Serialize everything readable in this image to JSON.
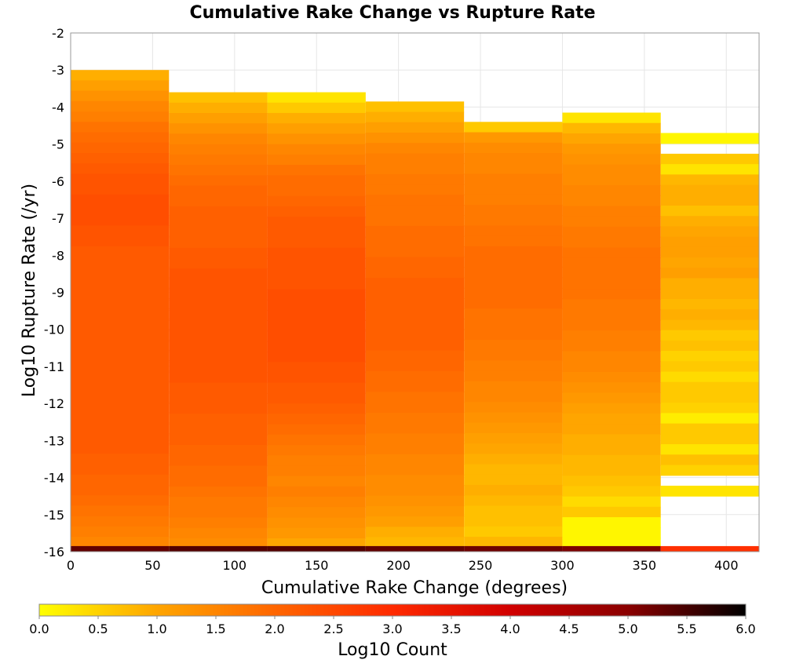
{
  "chart_data": {
    "type": "heatmap",
    "title": "Cumulative Rake Change vs Rupture Rate",
    "xlabel": "Cumulative Rake Change (degrees)",
    "ylabel": "Log10 Rupture Rate (/yr)",
    "xlim": [
      0,
      420
    ],
    "ylim": [
      -16,
      -2
    ],
    "x_ticks": [
      "0",
      "50",
      "100",
      "150",
      "200",
      "250",
      "300",
      "350",
      "400"
    ],
    "y_ticks": [
      "-2",
      "-3",
      "-4",
      "-5",
      "-6",
      "-7",
      "-8",
      "-9",
      "-10",
      "-11",
      "-12",
      "-13",
      "-14",
      "-15",
      "-16"
    ],
    "grid": true,
    "colorbar": {
      "label": "Log10 Count",
      "min": 0.0,
      "max": 6.0,
      "ticks": [
        "0.0",
        "0.5",
        "1.0",
        "1.5",
        "2.0",
        "2.5",
        "3.0",
        "3.5",
        "4.0",
        "4.5",
        "5.0",
        "5.5",
        "6.0"
      ],
      "colors": [
        "#ffff00",
        "#ffa500",
        "#ff6600",
        "#ff2a00",
        "#d10000",
        "#8a0000",
        "#000000"
      ]
    },
    "bin_width": 60,
    "bin_height": 0.28,
    "columns": [
      {
        "x_start": 0,
        "top": -3.0,
        "values": [
          0.9,
          1.1,
          1.3,
          1.5,
          1.6,
          1.8,
          1.9,
          2.0,
          2.1,
          2.2,
          2.3,
          2.3,
          2.4,
          2.4,
          2.4,
          2.3,
          2.3,
          2.2,
          2.2,
          2.2,
          2.2,
          2.2,
          2.2,
          2.2,
          2.2,
          2.2,
          2.2,
          2.2,
          2.2,
          2.2,
          2.2,
          2.2,
          2.2,
          2.2,
          2.2,
          2.2,
          2.2,
          2.1,
          2.1,
          2.0,
          2.0,
          1.9,
          1.8,
          1.7,
          1.6,
          1.5,
          1.4,
          1.3,
          1.2,
          1.1,
          1.0
        ],
        "last_row": 5.3
      },
      {
        "x_start": 60,
        "top": -3.6,
        "values": [
          0.7,
          0.9,
          1.1,
          1.3,
          1.5,
          1.6,
          1.7,
          1.8,
          1.9,
          2.0,
          2.0,
          2.1,
          2.1,
          2.1,
          2.1,
          2.2,
          2.2,
          2.3,
          2.3,
          2.3,
          2.3,
          2.3,
          2.3,
          2.3,
          2.3,
          2.3,
          2.3,
          2.3,
          2.2,
          2.2,
          2.2,
          2.1,
          2.1,
          2.1,
          2.0,
          2.0,
          1.9,
          1.9,
          1.8,
          1.7,
          1.7,
          1.6,
          1.5,
          1.4,
          1.3,
          1.2,
          1.1
        ],
        "last_row": 5.4
      },
      {
        "x_start": 120,
        "top": -3.6,
        "values": [
          0.3,
          0.6,
          0.9,
          1.1,
          1.3,
          1.5,
          1.6,
          1.8,
          1.9,
          1.9,
          2.0,
          2.1,
          2.2,
          2.2,
          2.2,
          2.3,
          2.3,
          2.3,
          2.3,
          2.4,
          2.4,
          2.4,
          2.4,
          2.4,
          2.4,
          2.4,
          2.3,
          2.3,
          2.2,
          2.2,
          2.1,
          2.0,
          1.9,
          1.8,
          1.7,
          1.6,
          1.6,
          1.5,
          1.6,
          1.5,
          1.4,
          1.3,
          1.2,
          1.0,
          1.2,
          1.1,
          1.0
        ],
        "last_row": 5.4
      },
      {
        "x_start": 180,
        "top": -3.85,
        "values": [
          0.7,
          0.9,
          1.1,
          1.3,
          1.5,
          1.6,
          1.6,
          1.7,
          1.7,
          1.8,
          1.8,
          1.8,
          1.9,
          1.9,
          1.9,
          2.0,
          2.0,
          2.1,
          2.1,
          2.1,
          2.1,
          2.1,
          2.1,
          2.1,
          2.0,
          2.0,
          1.9,
          1.9,
          1.8,
          1.8,
          1.7,
          1.7,
          1.6,
          1.6,
          1.5,
          1.5,
          1.4,
          1.4,
          1.3,
          1.2,
          1.1,
          0.9,
          0.8
        ],
        "last_row": 5.3
      },
      {
        "x_start": 240,
        "top": -4.4,
        "values": [
          0.6,
          1.2,
          1.4,
          1.5,
          1.5,
          1.6,
          1.6,
          1.6,
          1.7,
          1.7,
          1.8,
          1.8,
          1.9,
          1.9,
          1.9,
          1.9,
          1.9,
          1.9,
          1.8,
          1.8,
          1.8,
          1.7,
          1.7,
          1.6,
          1.6,
          1.5,
          1.5,
          1.4,
          1.3,
          1.2,
          1.1,
          1.0,
          0.9,
          0.8,
          0.8,
          0.9,
          0.8,
          0.7,
          0.7,
          0.6,
          0.8
        ],
        "last_row": 5.2
      },
      {
        "x_start": 300,
        "top": -4.15,
        "values": [
          0.3,
          0.8,
          1.0,
          1.2,
          1.3,
          1.4,
          1.4,
          1.5,
          1.5,
          1.6,
          1.6,
          1.7,
          1.7,
          1.8,
          1.8,
          1.8,
          1.8,
          1.8,
          1.7,
          1.7,
          1.7,
          1.6,
          1.6,
          1.5,
          1.5,
          1.4,
          1.3,
          1.2,
          1.1,
          1.0,
          1.0,
          0.9,
          0.9,
          0.8,
          0.8,
          0.7,
          0.6,
          0.4,
          0.6,
          0.1,
          0.1,
          0.1
        ],
        "last_row": 5.1
      },
      {
        "x_start": 360,
        "top": -4.7,
        "values": [
          0.1,
          null,
          0.6,
          0.3,
          0.8,
          0.9,
          0.9,
          0.7,
          0.9,
          1.0,
          1.1,
          1.1,
          1.0,
          1.1,
          0.9,
          0.9,
          0.8,
          0.9,
          0.8,
          0.6,
          0.7,
          0.5,
          0.6,
          0.4,
          0.6,
          0.6,
          0.5,
          0.2,
          0.6,
          0.6,
          0.3,
          0.7,
          0.5,
          null,
          0.3
        ],
        "last_row": 2.9
      }
    ]
  }
}
